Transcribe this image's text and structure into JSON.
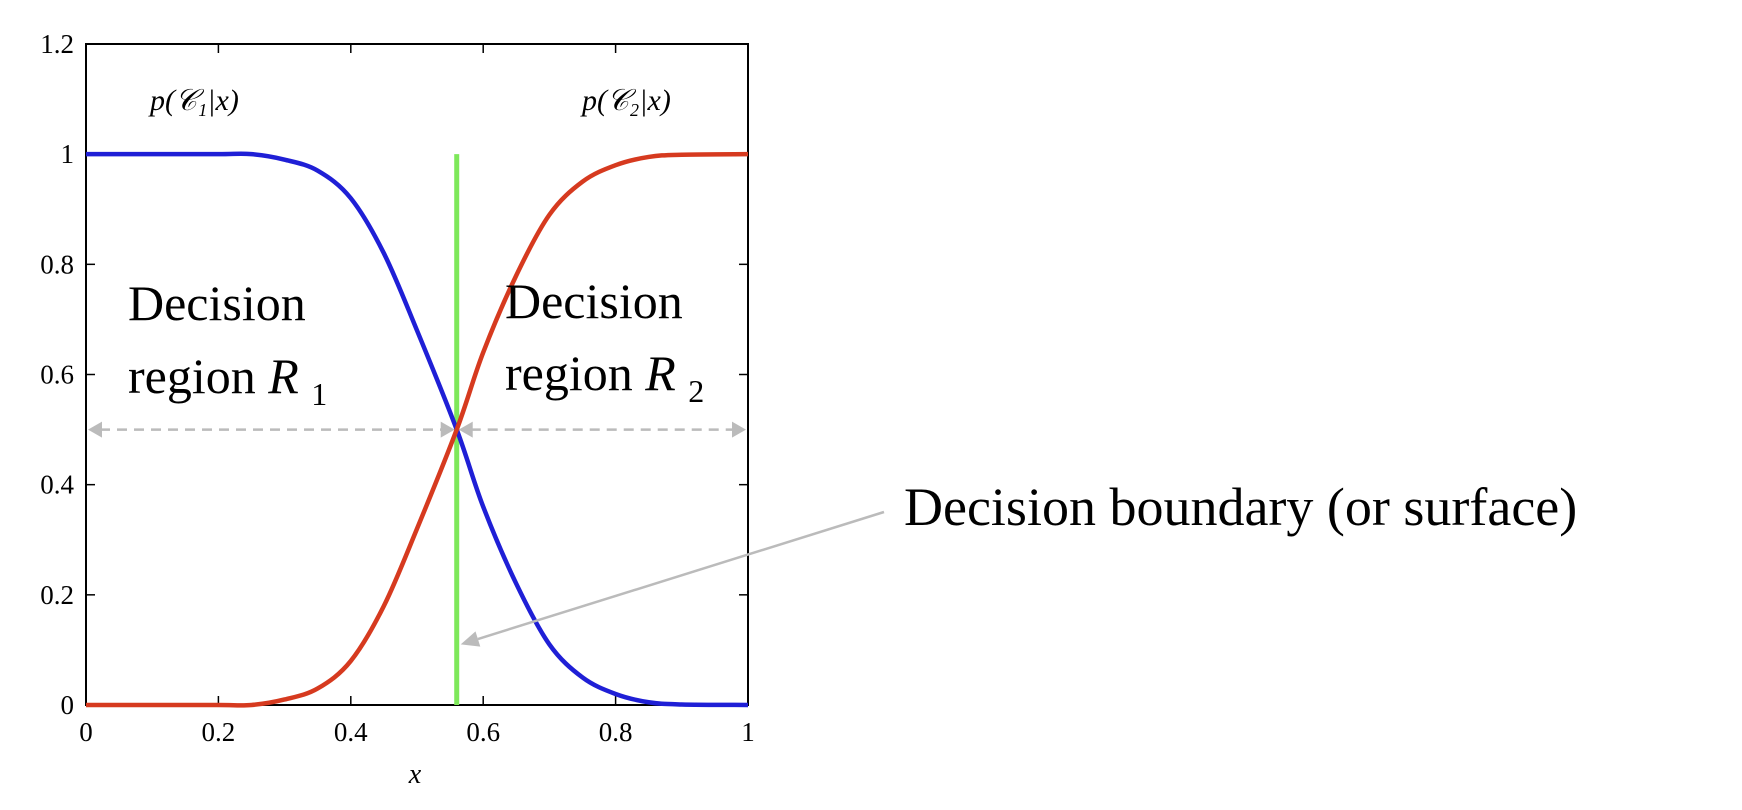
{
  "chart_data": {
    "type": "line",
    "xlabel": "x",
    "ylabel": "",
    "xlim": [
      0,
      1
    ],
    "ylim": [
      0,
      1.2
    ],
    "x_ticks": [
      "0",
      "0.2",
      "0.4",
      "0.6",
      "0.8",
      "1"
    ],
    "y_ticks": [
      "0",
      "0.2",
      "0.4",
      "0.6",
      "0.8",
      "1",
      "1.2"
    ],
    "x_tick_values": [
      0,
      0.2,
      0.4,
      0.6,
      0.8,
      1
    ],
    "y_tick_values": [
      0,
      0.2,
      0.4,
      0.6,
      0.8,
      1,
      1.2
    ],
    "grid": false,
    "series": [
      {
        "name": "p(C1|x)",
        "color": "#1f1fd6",
        "x": [
          0,
          0.1,
          0.2,
          0.25,
          0.3,
          0.35,
          0.4,
          0.45,
          0.5,
          0.56,
          0.6,
          0.65,
          0.7,
          0.75,
          0.8,
          0.85,
          0.9,
          1
        ],
        "y": [
          1,
          1,
          1,
          1,
          0.99,
          0.97,
          0.92,
          0.82,
          0.68,
          0.5,
          0.36,
          0.22,
          0.11,
          0.05,
          0.02,
          0.005,
          0.001,
          0
        ]
      },
      {
        "name": "p(C2|x)",
        "color": "#d63a1f",
        "x": [
          0,
          0.1,
          0.2,
          0.25,
          0.3,
          0.35,
          0.4,
          0.45,
          0.5,
          0.56,
          0.6,
          0.65,
          0.7,
          0.75,
          0.8,
          0.85,
          0.9,
          1
        ],
        "y": [
          0,
          0,
          0,
          0,
          0.01,
          0.03,
          0.08,
          0.18,
          0.32,
          0.5,
          0.64,
          0.78,
          0.89,
          0.95,
          0.98,
          0.995,
          0.999,
          1
        ]
      }
    ],
    "decision_boundary": {
      "x": 0.56,
      "y_range": [
        0,
        1
      ],
      "color": "#7ee85a"
    },
    "region_arrows": {
      "y": 0.5,
      "color": "#bbbbbb"
    },
    "annotations": {
      "label_c1": "p(𝒞₁|x)",
      "label_c2": "p(𝒞₂|x)",
      "region1_line1": "Decision",
      "region1_line2": "region ",
      "region1_symbol": "R",
      "region1_sub": "1",
      "region2_line1": "Decision",
      "region2_line2": "region ",
      "region2_symbol": "R",
      "region2_sub": "2",
      "boundary_text": "Decision boundary (or surface)",
      "pointer_target": [
        0.56,
        0.11
      ],
      "pointer_color": "#bbbbbb"
    }
  }
}
